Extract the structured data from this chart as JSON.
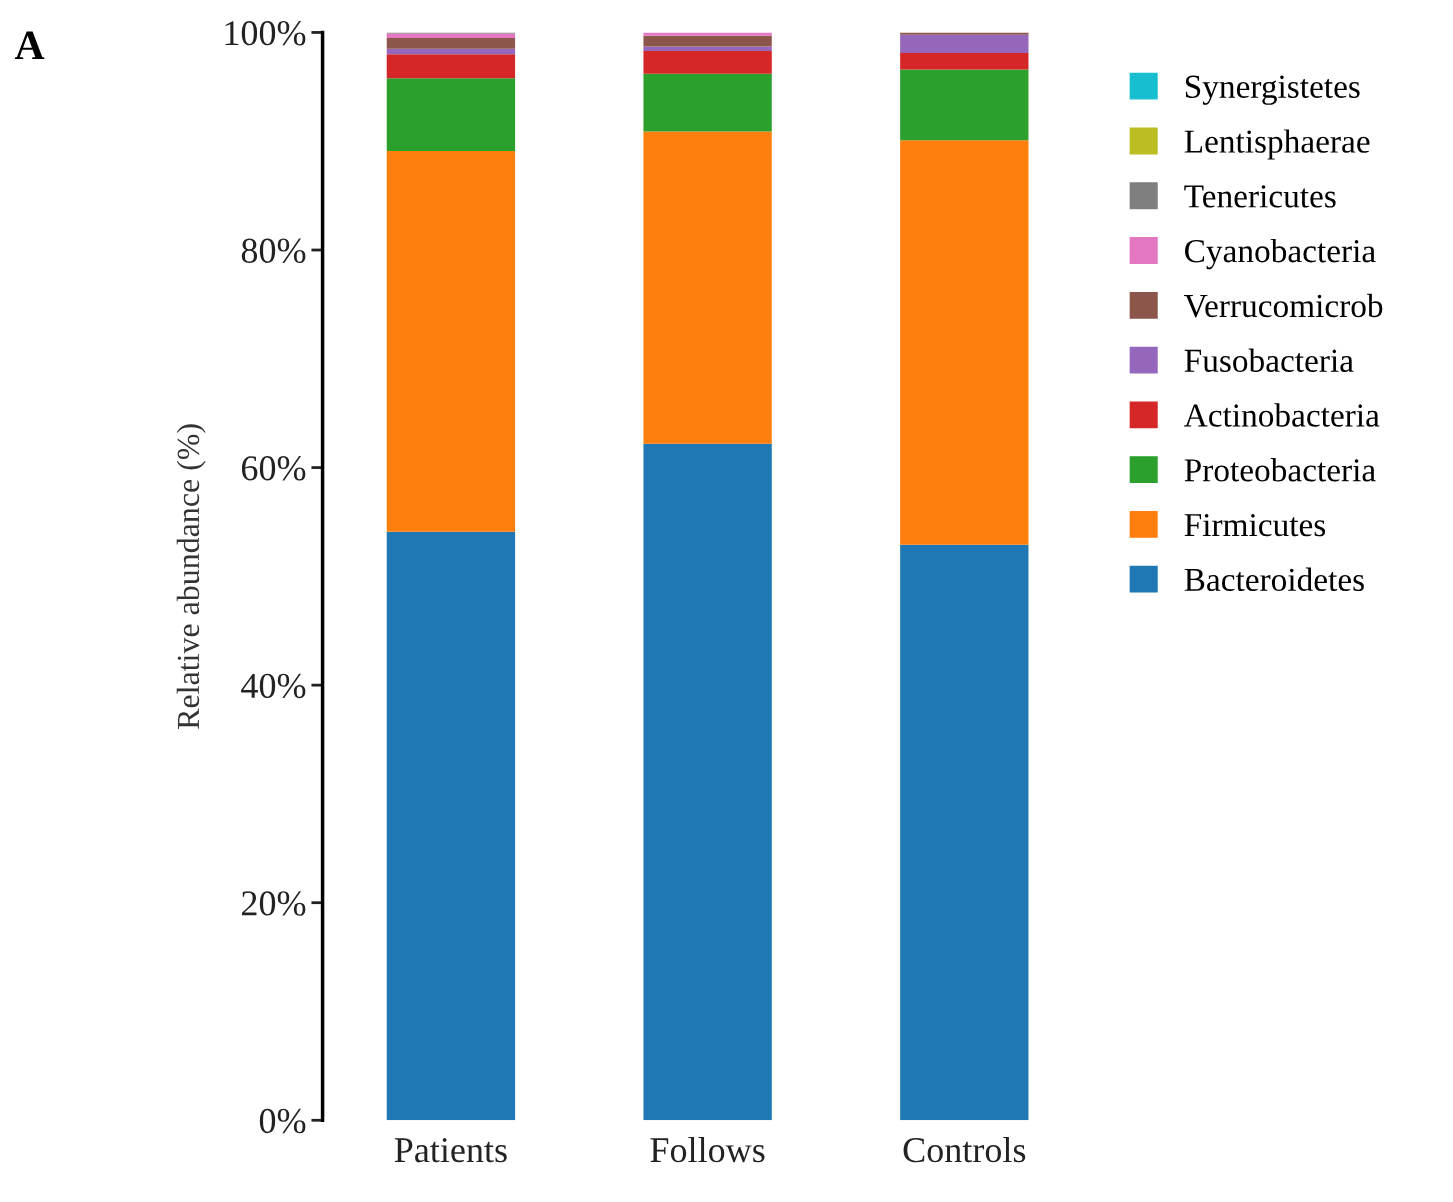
{
  "chart_data": {
    "type": "bar",
    "stacked": true,
    "ylabel": "Relative abundance (%)",
    "annotations": [
      "A"
    ],
    "categories": [
      "Patients",
      "Follows",
      "Controls"
    ],
    "series": [
      {
        "name": "Bacteroidetes",
        "color": "#1f77b4",
        "values": [
          54.1,
          62.2,
          52.9
        ]
      },
      {
        "name": "Firmicutes",
        "color": "#ff7f0e",
        "values": [
          35.0,
          28.7,
          37.2
        ]
      },
      {
        "name": "Proteobacteria",
        "color": "#2ca02c",
        "values": [
          6.7,
          5.3,
          6.5
        ]
      },
      {
        "name": "Actinobacteria",
        "color": "#d62728",
        "values": [
          2.2,
          2.1,
          1.5
        ]
      },
      {
        "name": "Fusobacteria",
        "color": "#9467bd",
        "values": [
          0.5,
          0.4,
          1.7
        ]
      },
      {
        "name": "Verrucomicrob",
        "color": "#8c564b",
        "values": [
          1.0,
          1.0,
          0.2
        ]
      },
      {
        "name": "Cyanobacteria",
        "color": "#e377c2",
        "values": [
          0.4,
          0.3,
          0.0
        ]
      },
      {
        "name": "Tenericutes",
        "color": "#7f7f7f",
        "values": [
          0.1,
          0.0,
          0.0
        ]
      },
      {
        "name": "Lentisphaerae",
        "color": "#bcbd22",
        "values": [
          0.0,
          0.0,
          0.0
        ]
      },
      {
        "name": "Synergistetes",
        "color": "#17becf",
        "values": [
          0.0,
          0.0,
          0.0
        ]
      }
    ],
    "ylim": [
      0,
      100
    ],
    "yticks": [
      {
        "value": 0,
        "label": "0%"
      },
      {
        "value": 20,
        "label": "20%"
      },
      {
        "value": 40,
        "label": "40%"
      },
      {
        "value": 60,
        "label": "60%"
      },
      {
        "value": 80,
        "label": "80%"
      },
      {
        "value": 100,
        "label": "100%"
      }
    ],
    "grid": false,
    "legend": "right"
  }
}
